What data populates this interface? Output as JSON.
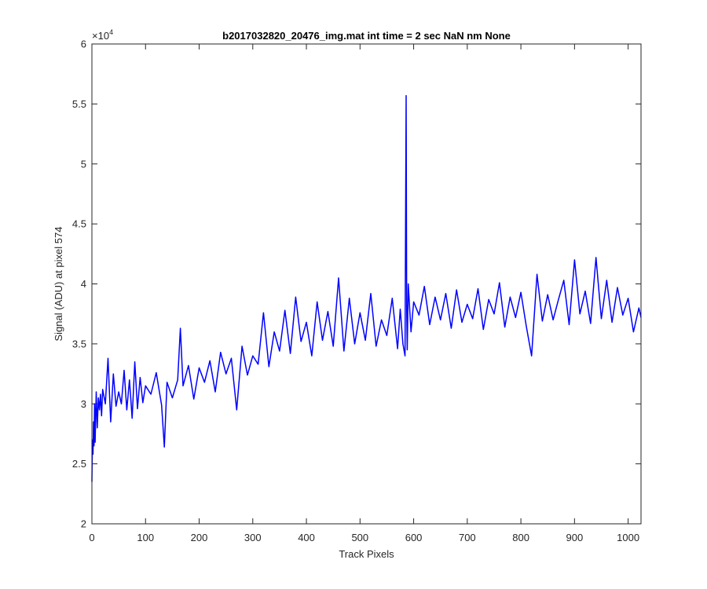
{
  "chart_data": {
    "type": "line",
    "title": "b2017032820_20476_img.mat int time = 2 sec  NaN nm None",
    "xlabel": "Track Pixels",
    "ylabel": "Signal (ADU) at pixel 574",
    "xlim": [
      0,
      1024
    ],
    "ylim": [
      20000,
      60000
    ],
    "y_exponent_label": "×10",
    "y_exponent_power": "4",
    "xticks": [
      0,
      100,
      200,
      300,
      400,
      500,
      600,
      700,
      800,
      900,
      1000
    ],
    "xtick_labels": [
      "0",
      "100",
      "200",
      "300",
      "400",
      "500",
      "600",
      "700",
      "800",
      "900",
      "1000"
    ],
    "yticks": [
      20000,
      25000,
      30000,
      35000,
      40000,
      45000,
      50000,
      55000,
      60000
    ],
    "ytick_labels": [
      "2",
      "2.5",
      "3",
      "3.5",
      "4",
      "4.5",
      "5",
      "5.5",
      "6"
    ],
    "grid": false,
    "box": true,
    "line_color": "#0000ff",
    "series": [
      {
        "x": [
          0,
          1,
          2,
          3,
          4,
          5,
          6,
          8,
          10,
          12,
          14,
          16,
          18,
          20,
          25,
          30,
          35,
          40,
          45,
          50,
          55,
          60,
          65,
          70,
          75,
          80,
          85,
          90,
          95,
          100,
          110,
          120,
          130,
          135,
          140,
          150,
          160,
          165,
          170,
          180,
          190,
          200,
          210,
          220,
          230,
          240,
          250,
          260,
          270,
          280,
          290,
          300,
          310,
          320,
          330,
          340,
          350,
          360,
          370,
          380,
          390,
          400,
          410,
          420,
          430,
          440,
          450,
          460,
          470,
          480,
          490,
          500,
          510,
          520,
          530,
          540,
          550,
          560,
          570,
          575,
          580,
          584,
          585,
          586,
          587,
          588,
          590,
          595,
          600,
          610,
          620,
          630,
          640,
          650,
          660,
          670,
          680,
          690,
          700,
          710,
          720,
          730,
          740,
          750,
          760,
          770,
          780,
          790,
          800,
          810,
          820,
          830,
          840,
          850,
          860,
          870,
          880,
          890,
          900,
          910,
          920,
          930,
          940,
          950,
          960,
          970,
          980,
          990,
          1000,
          1010,
          1020,
          1024
        ],
        "y": [
          23500,
          27000,
          25800,
          28500,
          26500,
          30000,
          26800,
          31000,
          28000,
          30500,
          29500,
          30800,
          29000,
          31200,
          30000,
          33800,
          28500,
          32500,
          29800,
          31000,
          30000,
          32800,
          29500,
          32000,
          28800,
          33500,
          29600,
          32200,
          30100,
          31500,
          30800,
          32600,
          29900,
          26400,
          31800,
          30500,
          32000,
          36300,
          31500,
          33200,
          30400,
          33000,
          31800,
          33600,
          31000,
          34300,
          32500,
          33800,
          29500,
          34800,
          32400,
          34000,
          33300,
          37600,
          33100,
          36000,
          34400,
          37800,
          34200,
          38900,
          35200,
          36800,
          34000,
          38500,
          35300,
          37700,
          34800,
          40500,
          34400,
          38800,
          35000,
          37600,
          35300,
          39200,
          34800,
          37000,
          35700,
          38800,
          34600,
          37900,
          35000,
          34000,
          45000,
          55700,
          38000,
          34500,
          40000,
          36000,
          38500,
          37400,
          39800,
          36600,
          38900,
          37000,
          39200,
          36300,
          39500,
          36800,
          38300,
          37100,
          39600,
          36200,
          38700,
          37500,
          40100,
          36400,
          38900,
          37200,
          39300,
          36500,
          34000,
          40800,
          36900,
          39100,
          37000,
          38700,
          40300,
          36600,
          42000,
          37500,
          39400,
          36700,
          42200,
          37100,
          40300,
          36800,
          39700,
          37400,
          38800,
          36000,
          38000,
          37200
        ]
      }
    ]
  }
}
